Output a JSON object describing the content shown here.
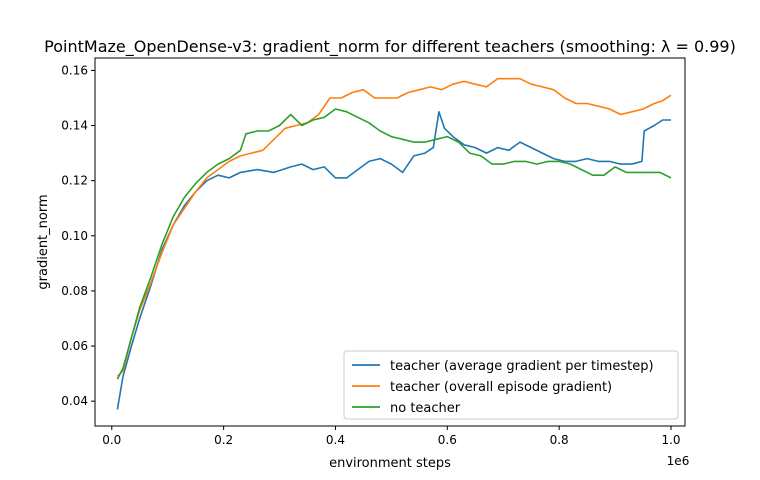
{
  "chart_data": {
    "type": "line",
    "title": "PointMaze_OpenDense-v3: gradient_norm for different teachers (smoothing: λ = 0.99)",
    "xlabel": "environment steps",
    "ylabel": "gradient_norm",
    "x_offset_label": "1e6",
    "xlim": [
      -30000,
      1025000
    ],
    "ylim": [
      0.031,
      0.1645
    ],
    "xticks": [
      0,
      200000,
      400000,
      600000,
      800000,
      1000000
    ],
    "xtick_labels": [
      "0.0",
      "0.2",
      "0.4",
      "0.6",
      "0.8",
      "1.0"
    ],
    "yticks": [
      0.04,
      0.06,
      0.08,
      0.1,
      0.12,
      0.14,
      0.16
    ],
    "ytick_labels": [
      "0.04",
      "0.06",
      "0.08",
      "0.10",
      "0.12",
      "0.14",
      "0.16"
    ],
    "grid": false,
    "legend_position": "lower-right",
    "series": [
      {
        "name": "teacher (average gradient per timestep)",
        "color": "#1f77b4",
        "points": [
          [
            10000,
            0.037
          ],
          [
            20000,
            0.049
          ],
          [
            35000,
            0.06
          ],
          [
            50000,
            0.07
          ],
          [
            70000,
            0.082
          ],
          [
            90000,
            0.095
          ],
          [
            110000,
            0.104
          ],
          [
            130000,
            0.111
          ],
          [
            150000,
            0.116
          ],
          [
            170000,
            0.12
          ],
          [
            190000,
            0.122
          ],
          [
            210000,
            0.121
          ],
          [
            230000,
            0.123
          ],
          [
            260000,
            0.124
          ],
          [
            290000,
            0.123
          ],
          [
            320000,
            0.125
          ],
          [
            340000,
            0.126
          ],
          [
            360000,
            0.124
          ],
          [
            380000,
            0.125
          ],
          [
            400000,
            0.121
          ],
          [
            420000,
            0.121
          ],
          [
            440000,
            0.124
          ],
          [
            460000,
            0.127
          ],
          [
            480000,
            0.128
          ],
          [
            500000,
            0.126
          ],
          [
            520000,
            0.123
          ],
          [
            540000,
            0.129
          ],
          [
            560000,
            0.13
          ],
          [
            575000,
            0.132
          ],
          [
            585000,
            0.145
          ],
          [
            595000,
            0.139
          ],
          [
            610000,
            0.136
          ],
          [
            630000,
            0.133
          ],
          [
            650000,
            0.132
          ],
          [
            670000,
            0.13
          ],
          [
            690000,
            0.132
          ],
          [
            710000,
            0.131
          ],
          [
            730000,
            0.134
          ],
          [
            750000,
            0.132
          ],
          [
            770000,
            0.13
          ],
          [
            790000,
            0.128
          ],
          [
            810000,
            0.127
          ],
          [
            830000,
            0.127
          ],
          [
            850000,
            0.128
          ],
          [
            870000,
            0.127
          ],
          [
            890000,
            0.127
          ],
          [
            910000,
            0.126
          ],
          [
            930000,
            0.126
          ],
          [
            948000,
            0.127
          ],
          [
            952000,
            0.138
          ],
          [
            970000,
            0.14
          ],
          [
            985000,
            0.142
          ],
          [
            1000000,
            0.142
          ]
        ]
      },
      {
        "name": "teacher (overall episode gradient)",
        "color": "#ff7f0e",
        "points": [
          [
            10000,
            0.049
          ],
          [
            20000,
            0.051
          ],
          [
            35000,
            0.063
          ],
          [
            50000,
            0.073
          ],
          [
            70000,
            0.083
          ],
          [
            90000,
            0.094
          ],
          [
            110000,
            0.104
          ],
          [
            130000,
            0.11
          ],
          [
            150000,
            0.116
          ],
          [
            170000,
            0.121
          ],
          [
            190000,
            0.124
          ],
          [
            210000,
            0.127
          ],
          [
            230000,
            0.129
          ],
          [
            250000,
            0.13
          ],
          [
            270000,
            0.131
          ],
          [
            290000,
            0.135
          ],
          [
            310000,
            0.139
          ],
          [
            330000,
            0.14
          ],
          [
            350000,
            0.141
          ],
          [
            370000,
            0.144
          ],
          [
            390000,
            0.15
          ],
          [
            410000,
            0.15
          ],
          [
            430000,
            0.152
          ],
          [
            450000,
            0.153
          ],
          [
            470000,
            0.15
          ],
          [
            490000,
            0.15
          ],
          [
            510000,
            0.15
          ],
          [
            530000,
            0.152
          ],
          [
            550000,
            0.153
          ],
          [
            570000,
            0.154
          ],
          [
            590000,
            0.153
          ],
          [
            610000,
            0.155
          ],
          [
            630000,
            0.156
          ],
          [
            650000,
            0.155
          ],
          [
            670000,
            0.154
          ],
          [
            690000,
            0.157
          ],
          [
            710000,
            0.157
          ],
          [
            730000,
            0.157
          ],
          [
            750000,
            0.155
          ],
          [
            770000,
            0.154
          ],
          [
            790000,
            0.153
          ],
          [
            810000,
            0.15
          ],
          [
            830000,
            0.148
          ],
          [
            850000,
            0.148
          ],
          [
            870000,
            0.147
          ],
          [
            890000,
            0.146
          ],
          [
            910000,
            0.144
          ],
          [
            930000,
            0.145
          ],
          [
            950000,
            0.146
          ],
          [
            970000,
            0.148
          ],
          [
            985000,
            0.149
          ],
          [
            1000000,
            0.151
          ]
        ]
      },
      {
        "name": "no teacher",
        "color": "#2ca02c",
        "points": [
          [
            10000,
            0.048
          ],
          [
            20000,
            0.052
          ],
          [
            35000,
            0.063
          ],
          [
            50000,
            0.074
          ],
          [
            70000,
            0.085
          ],
          [
            90000,
            0.097
          ],
          [
            110000,
            0.107
          ],
          [
            130000,
            0.114
          ],
          [
            150000,
            0.119
          ],
          [
            170000,
            0.123
          ],
          [
            190000,
            0.126
          ],
          [
            210000,
            0.128
          ],
          [
            230000,
            0.131
          ],
          [
            240000,
            0.137
          ],
          [
            260000,
            0.138
          ],
          [
            280000,
            0.138
          ],
          [
            300000,
            0.14
          ],
          [
            320000,
            0.144
          ],
          [
            340000,
            0.14
          ],
          [
            360000,
            0.142
          ],
          [
            380000,
            0.143
          ],
          [
            400000,
            0.146
          ],
          [
            420000,
            0.145
          ],
          [
            440000,
            0.143
          ],
          [
            460000,
            0.141
          ],
          [
            480000,
            0.138
          ],
          [
            500000,
            0.136
          ],
          [
            520000,
            0.135
          ],
          [
            540000,
            0.134
          ],
          [
            560000,
            0.134
          ],
          [
            580000,
            0.135
          ],
          [
            600000,
            0.136
          ],
          [
            620000,
            0.134
          ],
          [
            640000,
            0.13
          ],
          [
            660000,
            0.129
          ],
          [
            680000,
            0.126
          ],
          [
            700000,
            0.126
          ],
          [
            720000,
            0.127
          ],
          [
            740000,
            0.127
          ],
          [
            760000,
            0.126
          ],
          [
            780000,
            0.127
          ],
          [
            800000,
            0.127
          ],
          [
            820000,
            0.126
          ],
          [
            840000,
            0.124
          ],
          [
            860000,
            0.122
          ],
          [
            880000,
            0.122
          ],
          [
            900000,
            0.125
          ],
          [
            920000,
            0.123
          ],
          [
            940000,
            0.123
          ],
          [
            960000,
            0.123
          ],
          [
            980000,
            0.123
          ],
          [
            1000000,
            0.121
          ]
        ]
      }
    ]
  }
}
